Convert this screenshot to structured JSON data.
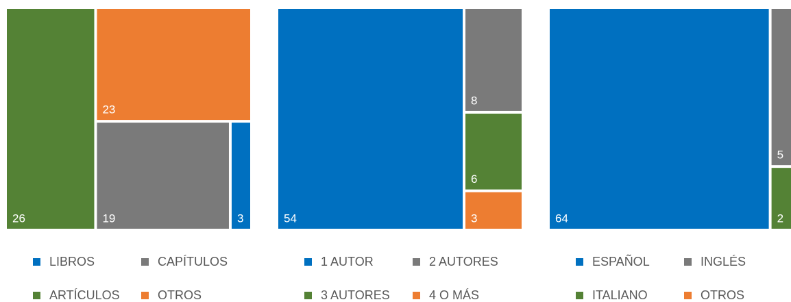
{
  "chart_data": [
    {
      "type": "treemap",
      "categories": [
        "LIBROS",
        "CAPÍTULOS",
        "ARTÍCULOS",
        "OTROS"
      ],
      "values": [
        3,
        19,
        26,
        23
      ],
      "colors": [
        "#0070c0",
        "#7a7a7a",
        "#548235",
        "#ed7d31"
      ]
    },
    {
      "type": "treemap",
      "categories": [
        "1 AUTOR",
        "2 AUTORES",
        "3 AUTORES",
        "4 O MÁS"
      ],
      "values": [
        54,
        8,
        6,
        3
      ],
      "colors": [
        "#0070c0",
        "#7a7a7a",
        "#548235",
        "#ed7d31"
      ]
    },
    {
      "type": "treemap",
      "categories": [
        "ESPAÑOL",
        "INGLÉS",
        "ITALIANO",
        "OTROS"
      ],
      "values": [
        64,
        5,
        2,
        0
      ],
      "colors": [
        "#0070c0",
        "#7a7a7a",
        "#548235",
        "#ed7d31"
      ]
    }
  ]
}
